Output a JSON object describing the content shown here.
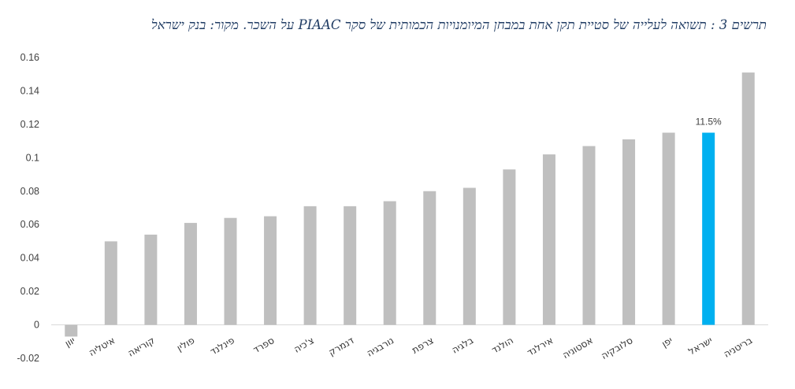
{
  "header": {
    "title": "תרשים 3 : תשואה לעלייה של סטיית תקן אחת במבחן המיומנויות הכמותית של סקר PIAAC על השכר. מקור: בנק ישראל"
  },
  "chart_data": {
    "type": "bar",
    "title": "תרשים 3 : תשואה לעלייה של סטיית תקן אחת במבחן המיומנויות הכמותית של סקר PIAAC על השכר. מקור: בנק ישראל",
    "xlabel": "",
    "ylabel": "",
    "ylim": [
      -0.02,
      0.16
    ],
    "yticks": [
      "-0.02",
      "0",
      "0.02",
      "0.04",
      "0.06",
      "0.08",
      "0.1",
      "0.12",
      "0.14",
      "0.16"
    ],
    "grid": false,
    "categories": [
      "יוון",
      "איטליה",
      "קוריאה",
      "פולין",
      "פינלנד",
      "ספרד",
      "צ'כיה",
      "דנמרק",
      "נורבגיה",
      "צרפת",
      "בלגיה",
      "הולנד",
      "אירלנד",
      "אסטוניה",
      "סלובקיה",
      "יפן",
      "ישראל",
      "בריטניה"
    ],
    "values": [
      -0.007,
      0.05,
      0.054,
      0.061,
      0.064,
      0.065,
      0.071,
      0.071,
      0.074,
      0.08,
      0.082,
      0.093,
      0.102,
      0.107,
      0.111,
      0.115,
      0.115,
      0.151
    ],
    "highlight": {
      "category": "ישראל",
      "label": "11.5%"
    },
    "colors": {
      "bar": "#bfbfbf",
      "highlight": "#00b0f0",
      "axis": "#d9d9d9"
    }
  }
}
